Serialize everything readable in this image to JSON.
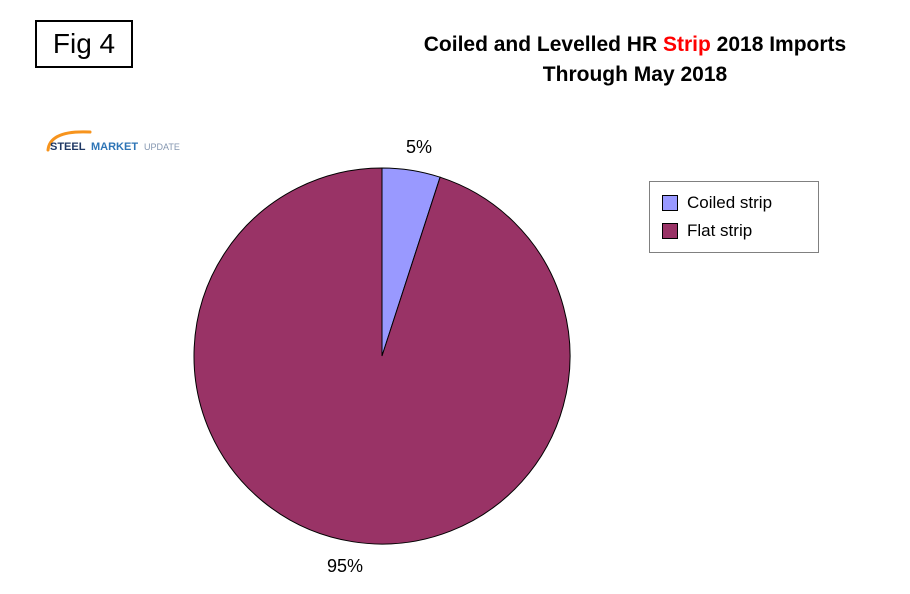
{
  "fig_label": "Fig 4",
  "title": {
    "part1": "Coiled and Levelled HR",
    "highlight": "Strip",
    "part2": "2018 Imports",
    "line2": "Through May 2018",
    "highlight_color": "#FF0000"
  },
  "logo": {
    "word1": "STEEL",
    "word2": "MARKET",
    "word3": "UPDATE",
    "arc_color": "#F7941D",
    "word1_color": "#1F3864",
    "word2_color": "#2E75B6",
    "word3_color": "#8496B0"
  },
  "chart_data": {
    "type": "pie",
    "title": "Coiled and Levelled HR Strip 2018 Imports Through May 2018",
    "start_angle_deg": -90,
    "direction": "clockwise",
    "legend_position": "right",
    "slices": [
      {
        "label": "Coiled strip",
        "value": 5,
        "percent_label": "5%",
        "color": "#9999FF"
      },
      {
        "label": "Flat strip",
        "value": 95,
        "percent_label": "95%",
        "color": "#993366"
      }
    ]
  },
  "legend": {
    "items": [
      {
        "label": "Coiled strip",
        "color": "#9999FF"
      },
      {
        "label": "Flat strip",
        "color": "#993366"
      }
    ]
  }
}
